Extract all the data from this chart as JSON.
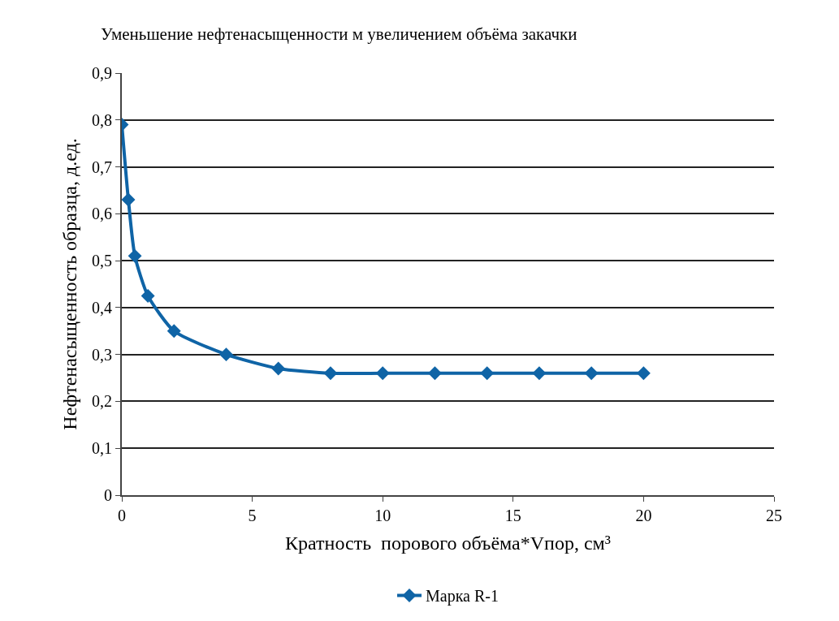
{
  "chart_data": {
    "type": "line",
    "title": "Уменьшение нефтенасыщенности м увеличением объёма закачки",
    "xlabel": "Кратность  порового объёма*Vпор, см³",
    "ylabel": "Нефтенасыщенность образца, д.ед.",
    "x": [
      0,
      0.25,
      0.5,
      1,
      2,
      4,
      6,
      8,
      10,
      12,
      14,
      16,
      18,
      20
    ],
    "series": [
      {
        "name": "Марка R-1",
        "color": "#0f64a6",
        "values": [
          0.79,
          0.63,
          0.51,
          0.425,
          0.35,
          0.3,
          0.27,
          0.26,
          0.26,
          0.26,
          0.26,
          0.26,
          0.26,
          0.26
        ]
      }
    ],
    "xlim": [
      0,
      25
    ],
    "xticks": [
      0,
      5,
      10,
      15,
      20,
      25
    ],
    "ylim": [
      0,
      0.9
    ],
    "yticks": [
      {
        "value": 0,
        "label": "0"
      },
      {
        "value": 0.1,
        "label": "0,1"
      },
      {
        "value": 0.2,
        "label": "0,2"
      },
      {
        "value": 0.3,
        "label": "0,3"
      },
      {
        "value": 0.4,
        "label": "0,4"
      },
      {
        "value": 0.5,
        "label": "0,5"
      },
      {
        "value": 0.6,
        "label": "0,6"
      },
      {
        "value": 0.7,
        "label": "0,7"
      },
      {
        "value": 0.8,
        "label": "0,8"
      },
      {
        "value": 0.9,
        "label": "0,9"
      }
    ],
    "grid": "y",
    "legend": "bottom",
    "marker": "diamond",
    "line_style": "solid"
  }
}
